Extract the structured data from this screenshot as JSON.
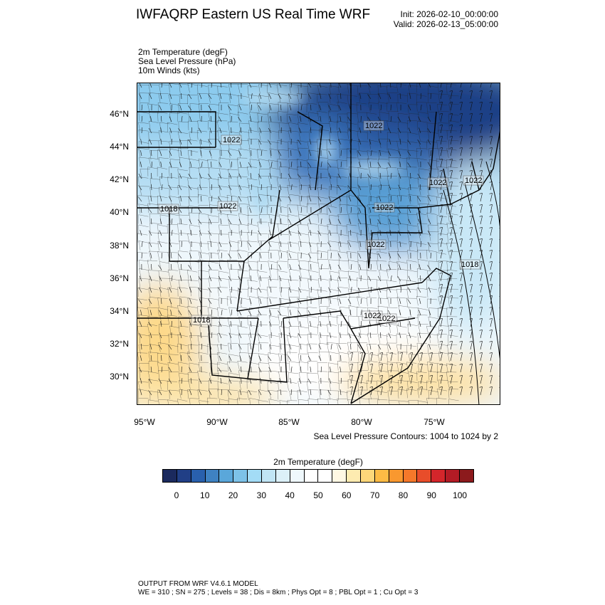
{
  "header": {
    "title": "IWFAQRP Eastern US Real Time WRF",
    "init": "Init: 2026-02-10_00:00:00",
    "valid": "Valid: 2026-02-13_05:00:00"
  },
  "fields": [
    "2m Temperature   (degF)",
    "Sea Level Pressure   (hPa)",
    "10m Winds   (kts)"
  ],
  "map": {
    "lat_ticks": [
      "46°N",
      "44°N",
      "42°N",
      "40°N",
      "38°N",
      "36°N",
      "34°N",
      "32°N",
      "30°N"
    ],
    "lon_ticks": [
      "95°W",
      "90°W",
      "85°W",
      "80°W",
      "75°W"
    ],
    "pressure_labels": [
      "1022",
      "1022",
      "1018",
      "1022",
      "1022",
      "1022",
      "1022",
      "1022",
      "1022",
      "1018",
      "1018",
      "1022"
    ],
    "slp_note": "Sea Level Pressure Contours: 1004 to 1024 by 2"
  },
  "colorbar": {
    "title": "2m Temperature  (degF)",
    "labels": [
      "0",
      "10",
      "20",
      "30",
      "40",
      "50",
      "60",
      "70",
      "80",
      "90",
      "100"
    ],
    "colors": [
      "#1b2a5e",
      "#213f86",
      "#2960ad",
      "#3f82c2",
      "#5aa7da",
      "#7dc2e8",
      "#a3dcf6",
      "#c1e5f5",
      "#dcf0f8",
      "#eff8fc",
      "#ffffff",
      "#ffffff",
      "#fff8e3",
      "#fdebb0",
      "#fdd77a",
      "#fdbb45",
      "#f9982f",
      "#f5782a",
      "#e84d2a",
      "#d4262b",
      "#b31b25",
      "#8c1a1c"
    ]
  },
  "footer": {
    "line1": "OUTPUT FROM WRF V4.6.1 MODEL",
    "line2": "WE = 310 ; SN = 275 ; Levels = 38 ; Dis = 8km ; Phys Opt = 8 ; PBL Opt = 1 ; Cu Opt = 3"
  }
}
